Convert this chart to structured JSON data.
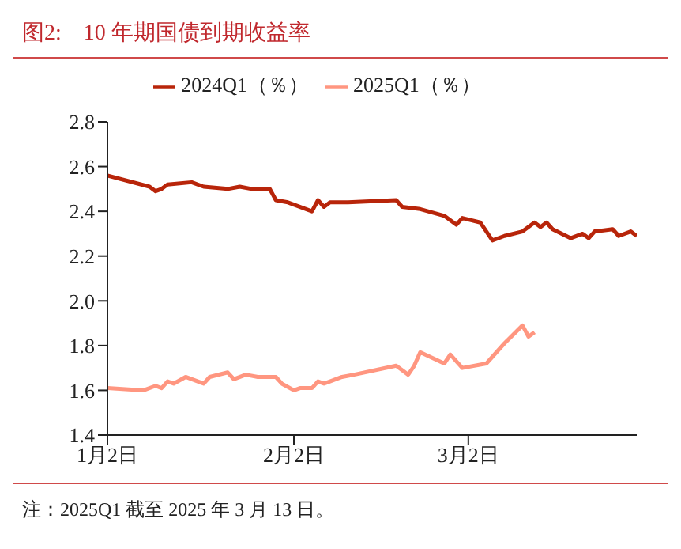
{
  "chart_data": {
    "type": "line",
    "title": "图2:    10 年期国债到期收益率",
    "annotations": [
      "注：2025Q1 截至 2025 年 3 月 13 日。"
    ],
    "xlim": [
      "--01-02",
      "--03-30"
    ],
    "xticks": [
      {
        "value": "--01-02",
        "label": "1月2日"
      },
      {
        "value": "--02-02",
        "label": "2月2日"
      },
      {
        "value": "--03-02",
        "label": "3月2日"
      }
    ],
    "ylim": [
      1.4,
      2.8
    ],
    "yticks": [
      1.4,
      1.6,
      1.8,
      {
        "value": 2.0,
        "label": "2.0"
      },
      2.2,
      2.4,
      2.6,
      2.8
    ],
    "grid": false,
    "legend": "top",
    "marker": "none",
    "line_style": "solid",
    "series": [
      {
        "name": "2024Q1（％）",
        "color": "#b8250a",
        "x": [
          "--01-02",
          "--01-09",
          "--01-10",
          "--01-11",
          "--01-12",
          "--01-16",
          "--01-18",
          "--01-22",
          "--01-24",
          "--01-26",
          "--01-29",
          "--01-30",
          "--02-01",
          "--02-05",
          "--02-06",
          "--02-07",
          "--02-08",
          "--02-11",
          "--02-19",
          "--02-20",
          "--02-23",
          "--02-27",
          "--02-29",
          "--03-01",
          "--03-04",
          "--03-06",
          "--03-08",
          "--03-11",
          "--03-13",
          "--03-14",
          "--03-15",
          "--03-16",
          "--03-19",
          "--03-21",
          "--03-22",
          "--03-23",
          "--03-26",
          "--03-27",
          "--03-29",
          "--03-30"
        ],
        "values": [
          2.56,
          2.51,
          2.49,
          2.5,
          2.52,
          2.53,
          2.51,
          2.5,
          2.51,
          2.5,
          2.5,
          2.45,
          2.44,
          2.4,
          2.45,
          2.42,
          2.44,
          2.44,
          2.45,
          2.42,
          2.41,
          2.38,
          2.34,
          2.37,
          2.35,
          2.27,
          2.29,
          2.31,
          2.35,
          2.33,
          2.35,
          2.32,
          2.28,
          2.3,
          2.28,
          2.31,
          2.32,
          2.29,
          2.31,
          2.29
        ]
      },
      {
        "name": "2025Q1（％）",
        "color": "#ff9680",
        "x": [
          "--01-02",
          "--01-08",
          "--01-10",
          "--01-11",
          "--01-12",
          "--01-13",
          "--01-15",
          "--01-18",
          "--01-19",
          "--01-22",
          "--01-23",
          "--01-25",
          "--01-27",
          "--01-30",
          "--01-31",
          "--02-02",
          "--02-03",
          "--02-05",
          "--02-06",
          "--02-07",
          "--02-08",
          "--02-10",
          "--02-12",
          "--02-19",
          "--02-21",
          "--02-22",
          "--02-23",
          "--02-27",
          "--02-28",
          "--03-01",
          "--03-05",
          "--03-08",
          "--03-11",
          "--03-12",
          "--03-13"
        ],
        "values": [
          1.61,
          1.6,
          1.62,
          1.61,
          1.64,
          1.63,
          1.66,
          1.63,
          1.66,
          1.68,
          1.65,
          1.67,
          1.66,
          1.66,
          1.63,
          1.6,
          1.61,
          1.61,
          1.64,
          1.63,
          1.64,
          1.66,
          1.67,
          1.71,
          1.67,
          1.71,
          1.77,
          1.72,
          1.76,
          1.7,
          1.72,
          1.81,
          1.89,
          1.84,
          1.86
        ]
      }
    ]
  }
}
